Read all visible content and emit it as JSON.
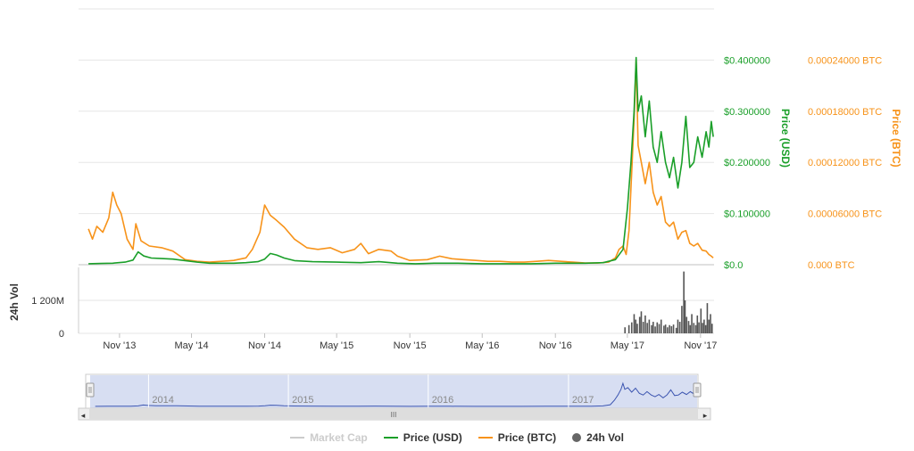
{
  "chart_data": {
    "type": "line",
    "x_ticks": [
      "Nov '13",
      "May '14",
      "Nov '14",
      "May '15",
      "Nov '15",
      "May '16",
      "Nov '16",
      "May '17",
      "Nov '17"
    ],
    "y_usd_ticks": [
      "$0.0",
      "$0.100000",
      "$0.200000",
      "$0.300000",
      "$0.400000"
    ],
    "y_btc_ticks": [
      "0.000 BTC",
      "0.00006000 BTC",
      "0.00012000 BTC",
      "0.00018000 BTC",
      "0.00024000 BTC"
    ],
    "y_usd_range": [
      0,
      0.5
    ],
    "y_btc_range": [
      0,
      0.0003
    ],
    "y_usd_label": "Price (USD)",
    "y_btc_label": "Price (BTC)",
    "vol_label": "24h Vol",
    "vol_ticks": [
      "0",
      "1 200M"
    ],
    "vol_range": [
      0,
      2400
    ],
    "navigator_years": [
      "2014",
      "2015",
      "2016",
      "2017"
    ],
    "series": [
      {
        "name": "Price (USD)",
        "color": "#1a9f29",
        "points": [
          [
            "2013-08-15",
            0.002
          ],
          [
            "2013-09-15",
            0.0025
          ],
          [
            "2013-10-15",
            0.003
          ],
          [
            "2013-11-15",
            0.005
          ],
          [
            "2013-12-05",
            0.009
          ],
          [
            "2013-12-18",
            0.025
          ],
          [
            "2014-01-01",
            0.017
          ],
          [
            "2014-01-20",
            0.013
          ],
          [
            "2014-02-15",
            0.012
          ],
          [
            "2014-03-15",
            0.011
          ],
          [
            "2014-04-15",
            0.008
          ],
          [
            "2014-05-15",
            0.005
          ],
          [
            "2014-06-15",
            0.003
          ],
          [
            "2014-07-15",
            0.003
          ],
          [
            "2014-08-15",
            0.003
          ],
          [
            "2014-09-15",
            0.004
          ],
          [
            "2014-10-15",
            0.006
          ],
          [
            "2014-11-01",
            0.011
          ],
          [
            "2014-11-15",
            0.022
          ],
          [
            "2014-12-01",
            0.019
          ],
          [
            "2014-12-20",
            0.013
          ],
          [
            "2015-01-15",
            0.008
          ],
          [
            "2015-03-01",
            0.006
          ],
          [
            "2015-05-01",
            0.005
          ],
          [
            "2015-07-01",
            0.004
          ],
          [
            "2015-08-15",
            0.006
          ],
          [
            "2015-10-01",
            0.003
          ],
          [
            "2015-11-15",
            0.002
          ],
          [
            "2016-01-01",
            0.003
          ],
          [
            "2016-03-01",
            0.003
          ],
          [
            "2016-05-01",
            0.002
          ],
          [
            "2016-07-01",
            0.002
          ],
          [
            "2016-09-01",
            0.002
          ],
          [
            "2016-11-01",
            0.003
          ],
          [
            "2016-12-15",
            0.003
          ],
          [
            "2017-01-15",
            0.003
          ],
          [
            "2017-03-01",
            0.004
          ],
          [
            "2017-04-01",
            0.01
          ],
          [
            "2017-04-20",
            0.03
          ],
          [
            "2017-05-01",
            0.11
          ],
          [
            "2017-05-10",
            0.2
          ],
          [
            "2017-05-18",
            0.3
          ],
          [
            "2017-05-23",
            0.405
          ],
          [
            "2017-05-28",
            0.3
          ],
          [
            "2017-06-05",
            0.33
          ],
          [
            "2017-06-15",
            0.25
          ],
          [
            "2017-06-25",
            0.32
          ],
          [
            "2017-07-05",
            0.23
          ],
          [
            "2017-07-15",
            0.2
          ],
          [
            "2017-07-25",
            0.26
          ],
          [
            "2017-08-05",
            0.2
          ],
          [
            "2017-08-15",
            0.17
          ],
          [
            "2017-08-25",
            0.21
          ],
          [
            "2017-09-05",
            0.15
          ],
          [
            "2017-09-15",
            0.2
          ],
          [
            "2017-09-25",
            0.29
          ],
          [
            "2017-10-05",
            0.19
          ],
          [
            "2017-10-15",
            0.2
          ],
          [
            "2017-10-25",
            0.25
          ],
          [
            "2017-11-05",
            0.21
          ],
          [
            "2017-11-15",
            0.26
          ],
          [
            "2017-11-22",
            0.23
          ],
          [
            "2017-11-28",
            0.28
          ],
          [
            "2017-12-03",
            0.25
          ]
        ]
      },
      {
        "name": "Price (BTC)",
        "color": "#f7931a",
        "points": [
          [
            "2013-08-15",
            4.2e-05
          ],
          [
            "2013-08-25",
            3e-05
          ],
          [
            "2013-09-05",
            4.5e-05
          ],
          [
            "2013-09-20",
            3.8e-05
          ],
          [
            "2013-10-05",
            5.5e-05
          ],
          [
            "2013-10-15",
            8.5e-05
          ],
          [
            "2013-10-25",
            7e-05
          ],
          [
            "2013-11-05",
            6e-05
          ],
          [
            "2013-11-20",
            3e-05
          ],
          [
            "2013-12-05",
            1.8e-05
          ],
          [
            "2013-12-12",
            4.8e-05
          ],
          [
            "2013-12-25",
            2.8e-05
          ],
          [
            "2014-01-15",
            2.2e-05
          ],
          [
            "2014-02-15",
            2e-05
          ],
          [
            "2014-03-15",
            1.6e-05
          ],
          [
            "2014-04-15",
            6e-06
          ],
          [
            "2014-05-15",
            4e-06
          ],
          [
            "2014-06-15",
            3e-06
          ],
          [
            "2014-07-15",
            4e-06
          ],
          [
            "2014-08-15",
            5e-06
          ],
          [
            "2014-09-15",
            8e-06
          ],
          [
            "2014-10-01",
            1.8e-05
          ],
          [
            "2014-10-20",
            3.8e-05
          ],
          [
            "2014-11-01",
            7e-05
          ],
          [
            "2014-11-15",
            5.8e-05
          ],
          [
            "2014-12-01",
            5.2e-05
          ],
          [
            "2014-12-20",
            4.4e-05
          ],
          [
            "2015-01-15",
            3e-05
          ],
          [
            "2015-02-15",
            2e-05
          ],
          [
            "2015-03-15",
            1.8e-05
          ],
          [
            "2015-04-15",
            2e-05
          ],
          [
            "2015-05-15",
            1.4e-05
          ],
          [
            "2015-06-15",
            1.8e-05
          ],
          [
            "2015-07-01",
            2.5e-05
          ],
          [
            "2015-07-20",
            1.3e-05
          ],
          [
            "2015-08-15",
            1.8e-05
          ],
          [
            "2015-09-15",
            1.6e-05
          ],
          [
            "2015-10-01",
            1e-05
          ],
          [
            "2015-11-01",
            5e-06
          ],
          [
            "2015-12-15",
            6e-06
          ],
          [
            "2016-01-15",
            1e-05
          ],
          [
            "2016-02-15",
            7e-06
          ],
          [
            "2016-03-15",
            6e-06
          ],
          [
            "2016-04-15",
            5e-06
          ],
          [
            "2016-05-15",
            4e-06
          ],
          [
            "2016-06-15",
            4e-06
          ],
          [
            "2016-07-15",
            3e-06
          ],
          [
            "2016-08-15",
            3e-06
          ],
          [
            "2016-09-15",
            4e-06
          ],
          [
            "2016-10-15",
            5e-06
          ],
          [
            "2016-11-15",
            4e-06
          ],
          [
            "2016-12-15",
            3e-06
          ],
          [
            "2017-01-15",
            2e-06
          ],
          [
            "2017-02-15",
            2e-06
          ],
          [
            "2017-03-15",
            3e-06
          ],
          [
            "2017-04-01",
            8e-06
          ],
          [
            "2017-04-10",
            1.8e-05
          ],
          [
            "2017-04-20",
            2.2e-05
          ],
          [
            "2017-04-28",
            1.2e-05
          ],
          [
            "2017-05-05",
            4e-05
          ],
          [
            "2017-05-12",
            0.00011
          ],
          [
            "2017-05-18",
            0.00017
          ],
          [
            "2017-05-23",
            0.00024
          ],
          [
            "2017-05-28",
            0.00014
          ],
          [
            "2017-06-05",
            0.00012
          ],
          [
            "2017-06-15",
            9.5e-05
          ],
          [
            "2017-06-25",
            0.00012
          ],
          [
            "2017-07-05",
            8.5e-05
          ],
          [
            "2017-07-15",
            7e-05
          ],
          [
            "2017-07-25",
            8e-05
          ],
          [
            "2017-08-05",
            5e-05
          ],
          [
            "2017-08-15",
            4.5e-05
          ],
          [
            "2017-08-25",
            5e-05
          ],
          [
            "2017-09-05",
            3e-05
          ],
          [
            "2017-09-15",
            3.8e-05
          ],
          [
            "2017-09-25",
            4e-05
          ],
          [
            "2017-10-05",
            2.5e-05
          ],
          [
            "2017-10-15",
            2.2e-05
          ],
          [
            "2017-10-25",
            2.5e-05
          ],
          [
            "2017-11-05",
            1.7e-05
          ],
          [
            "2017-11-15",
            1.6e-05
          ],
          [
            "2017-11-22",
            1.2e-05
          ],
          [
            "2017-11-28",
            1e-05
          ],
          [
            "2017-12-03",
            8e-06
          ]
        ]
      },
      {
        "name": "24h Vol",
        "color": "#555555",
        "points": [
          [
            "2017-04-25",
            220
          ],
          [
            "2017-05-05",
            300
          ],
          [
            "2017-05-12",
            400
          ],
          [
            "2017-05-18",
            700
          ],
          [
            "2017-05-22",
            500
          ],
          [
            "2017-05-26",
            350
          ],
          [
            "2017-06-01",
            600
          ],
          [
            "2017-06-05",
            800
          ],
          [
            "2017-06-10",
            420
          ],
          [
            "2017-06-15",
            650
          ],
          [
            "2017-06-20",
            380
          ],
          [
            "2017-06-25",
            500
          ],
          [
            "2017-07-01",
            300
          ],
          [
            "2017-07-05",
            420
          ],
          [
            "2017-07-10",
            250
          ],
          [
            "2017-07-15",
            400
          ],
          [
            "2017-07-20",
            340
          ],
          [
            "2017-07-25",
            500
          ],
          [
            "2017-08-01",
            280
          ],
          [
            "2017-08-05",
            320
          ],
          [
            "2017-08-10",
            220
          ],
          [
            "2017-08-15",
            300
          ],
          [
            "2017-08-20",
            260
          ],
          [
            "2017-08-25",
            320
          ],
          [
            "2017-09-01",
            200
          ],
          [
            "2017-09-05",
            500
          ],
          [
            "2017-09-10",
            420
          ],
          [
            "2017-09-15",
            1000
          ],
          [
            "2017-09-20",
            2250
          ],
          [
            "2017-09-23",
            1200
          ],
          [
            "2017-09-27",
            600
          ],
          [
            "2017-10-02",
            450
          ],
          [
            "2017-10-06",
            300
          ],
          [
            "2017-10-10",
            700
          ],
          [
            "2017-10-15",
            380
          ],
          [
            "2017-10-20",
            300
          ],
          [
            "2017-10-24",
            650
          ],
          [
            "2017-10-28",
            400
          ],
          [
            "2017-11-02",
            900
          ],
          [
            "2017-11-06",
            380
          ],
          [
            "2017-11-10",
            500
          ],
          [
            "2017-11-14",
            300
          ],
          [
            "2017-11-18",
            1100
          ],
          [
            "2017-11-22",
            500
          ],
          [
            "2017-11-26",
            700
          ],
          [
            "2017-11-30",
            350
          ]
        ]
      }
    ]
  },
  "legend": [
    {
      "label": "Market Cap",
      "color": "#cccccc",
      "shape": "line",
      "muted": true
    },
    {
      "label": "Price (USD)",
      "color": "#1a9f29",
      "shape": "line",
      "muted": false
    },
    {
      "label": "Price (BTC)",
      "color": "#f7931a",
      "shape": "line",
      "muted": false
    },
    {
      "label": "24h Vol",
      "color": "#666666",
      "shape": "dot",
      "muted": false
    }
  ],
  "navigator": {
    "left_arrow": "◂",
    "right_arrow": "▸",
    "scroll_grip": "III"
  }
}
